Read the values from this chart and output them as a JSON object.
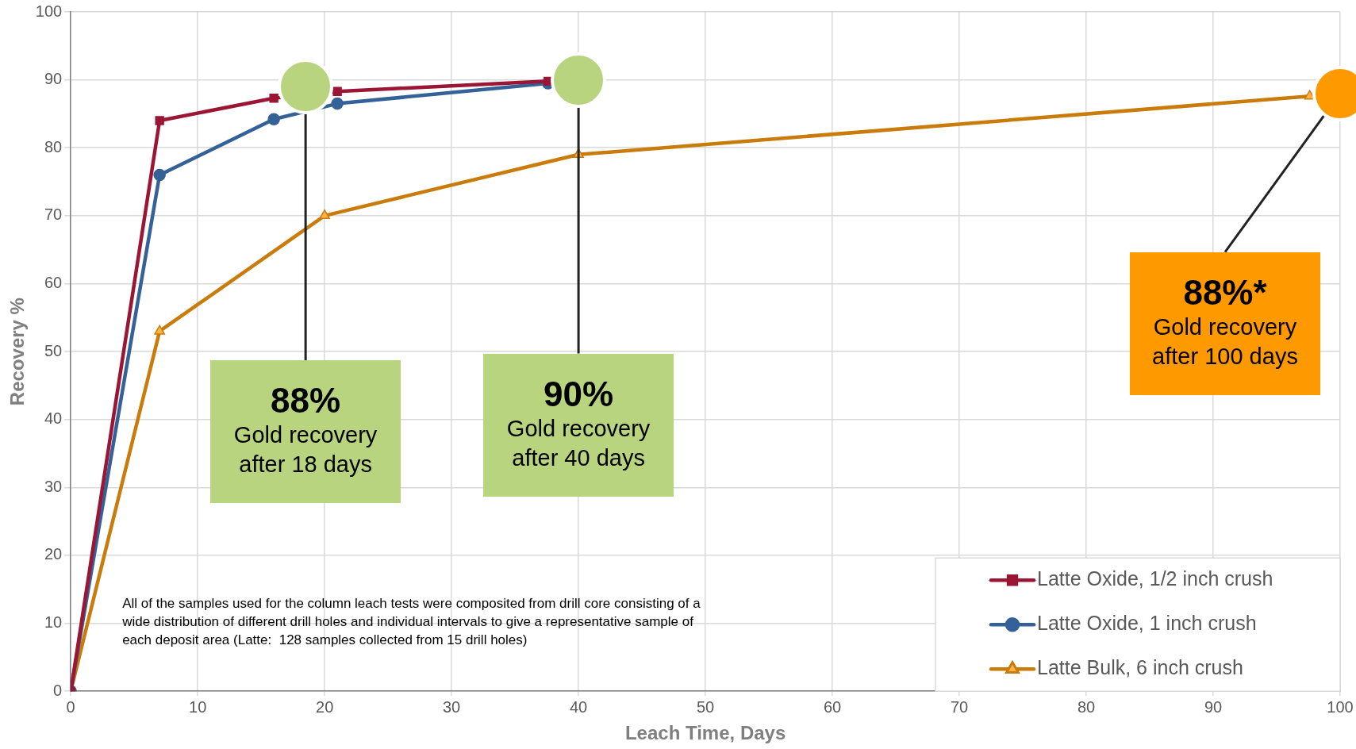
{
  "chart_data": {
    "type": "line",
    "xlabel": "Leach Time, Days",
    "ylabel": "Recovery %",
    "xlim": [
      0,
      100
    ],
    "xticks": [
      0,
      10,
      20,
      30,
      40,
      50,
      60,
      70,
      80,
      90,
      100
    ],
    "ylim": [
      0,
      100
    ],
    "yticks": [
      0,
      10,
      20,
      30,
      40,
      50,
      60,
      70,
      80,
      90,
      100
    ],
    "grid": true,
    "legend": "bottom right",
    "series": [
      {
        "name": "Latte Oxide, 1/2 inch crush",
        "color": "#9b1535",
        "marker": "square",
        "x": [
          0,
          7,
          16,
          21,
          37.6
        ],
        "values": [
          0,
          84,
          87.3,
          88.3,
          89.8
        ]
      },
      {
        "name": "Latte Oxide, 1 inch crush",
        "color": "#346198",
        "marker": "circle",
        "x": [
          0,
          7,
          16,
          21,
          37.6
        ],
        "values": [
          0,
          76,
          84.2,
          86.5,
          89.5
        ]
      },
      {
        "name": "Latte Bulk, 6 inch crush",
        "color": "#c97b0b",
        "marker": "triangle",
        "x": [
          0,
          7,
          20,
          40,
          97.6
        ],
        "values": [
          0,
          53,
          70,
          79,
          87.6
        ]
      }
    ],
    "annotations": [
      "88%\nGold recovery\nafter 18 days",
      "90%\nGold recovery\nafter 40 days",
      "88%*\nGold recovery\nafter 100 days",
      "All of the samples used for the column leach tests were composited from drill core consisting of a\nwide distribution of different drill holes and individual intervals to give a representative sample of\neach deposit area (Latte:  128 samples collected from 15 drill holes)"
    ]
  }
}
